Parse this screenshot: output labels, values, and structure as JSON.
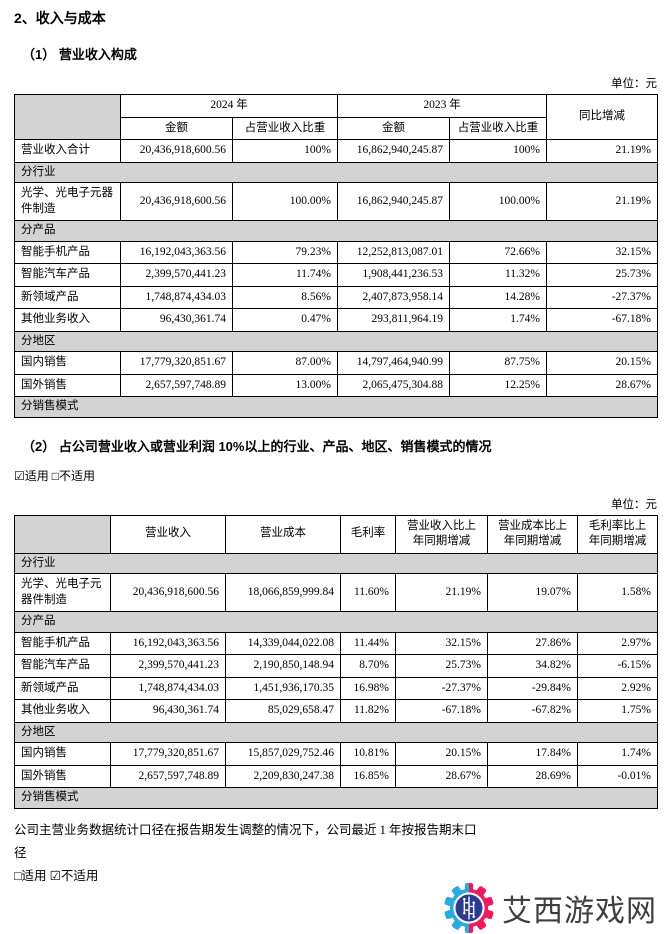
{
  "doc": {
    "heading": "2、收入与成本",
    "section1": {
      "title": "（1） 营业收入构成",
      "unit": "单位：元"
    },
    "section2": {
      "title": "（2） 占公司营业收入或营业利润 10%以上的行业、产品、地区、销售模式的情况",
      "applicability": "☑适用 □不适用",
      "unit": "单位：元"
    },
    "footer": {
      "line1": "公司主营业务数据统计口径在报告期发生调整的情况下，公司最近 1 年按报告期末口径",
      "line2": "□适用 ☑不适用"
    }
  },
  "table1": {
    "headers": {
      "y2024": "2024 年",
      "y2023": "2023 年",
      "yoy": "同比增减",
      "amount": "金额",
      "share": "占营业收入比重"
    },
    "rows": [
      {
        "type": "data",
        "label": "营业收入合计",
        "cells": [
          "20,436,918,600.56",
          "100%",
          "16,862,940,245.87",
          "100%",
          "21.19%"
        ]
      },
      {
        "type": "section",
        "label": "分行业"
      },
      {
        "type": "data",
        "label": "光学、光电子元器件制造",
        "cells": [
          "20,436,918,600.56",
          "100.00%",
          "16,862,940,245.87",
          "100.00%",
          "21.19%"
        ]
      },
      {
        "type": "section",
        "label": "分产品"
      },
      {
        "type": "data",
        "label": "智能手机产品",
        "cells": [
          "16,192,043,363.56",
          "79.23%",
          "12,252,813,087.01",
          "72.66%",
          "32.15%"
        ]
      },
      {
        "type": "data",
        "label": "智能汽车产品",
        "cells": [
          "2,399,570,441.23",
          "11.74%",
          "1,908,441,236.53",
          "11.32%",
          "25.73%"
        ]
      },
      {
        "type": "data",
        "label": "新领域产品",
        "cells": [
          "1,748,874,434.03",
          "8.56%",
          "2,407,873,958.14",
          "14.28%",
          "-27.37%"
        ]
      },
      {
        "type": "data",
        "label": "其他业务收入",
        "cells": [
          "96,430,361.74",
          "0.47%",
          "293,811,964.19",
          "1.74%",
          "-67.18%"
        ]
      },
      {
        "type": "section",
        "label": "分地区"
      },
      {
        "type": "data",
        "label": "国内销售",
        "cells": [
          "17,779,320,851.67",
          "87.00%",
          "14,797,464,940.99",
          "87.75%",
          "20.15%"
        ]
      },
      {
        "type": "data",
        "label": "国外销售",
        "cells": [
          "2,657,597,748.89",
          "13.00%",
          "2,065,475,304.88",
          "12.25%",
          "28.67%"
        ]
      },
      {
        "type": "section",
        "label": "分销售模式"
      }
    ]
  },
  "table2": {
    "headers": [
      "营业收入",
      "营业成本",
      "毛利率",
      "营业收入比上年同期增减",
      "营业成本比上年同期增减",
      "毛利率比上年同期增减"
    ],
    "rows": [
      {
        "type": "section",
        "label": "分行业"
      },
      {
        "type": "data",
        "label": "光学、光电子元器件制造",
        "cells": [
          "20,436,918,600.56",
          "18,066,859,999.84",
          "11.60%",
          "21.19%",
          "19.07%",
          "1.58%"
        ]
      },
      {
        "type": "section",
        "label": "分产品"
      },
      {
        "type": "data",
        "label": "智能手机产品",
        "cells": [
          "16,192,043,363.56",
          "14,339,044,022.08",
          "11.44%",
          "32.15%",
          "27.86%",
          "2.97%"
        ]
      },
      {
        "type": "data",
        "label": "智能汽车产品",
        "cells": [
          "2,399,570,441.23",
          "2,190,850,148.94",
          "8.70%",
          "25.73%",
          "34.82%",
          "-6.15%"
        ]
      },
      {
        "type": "data",
        "label": "新领域产品",
        "cells": [
          "1,748,874,434.03",
          "1,451,936,170.35",
          "16.98%",
          "-27.37%",
          "-29.84%",
          "2.92%"
        ]
      },
      {
        "type": "data",
        "label": "其他业务收入",
        "cells": [
          "96,430,361.74",
          "85,029,658.47",
          "11.82%",
          "-67.18%",
          "-67.82%",
          "1.75%"
        ]
      },
      {
        "type": "section",
        "label": "分地区"
      },
      {
        "type": "data",
        "label": "国内销售",
        "cells": [
          "17,779,320,851.67",
          "15,857,029,752.46",
          "10.81%",
          "20.15%",
          "17.84%",
          "1.74%"
        ]
      },
      {
        "type": "data",
        "label": "国外销售",
        "cells": [
          "2,657,597,748.89",
          "2,209,830,247.38",
          "16.85%",
          "28.67%",
          "28.69%",
          "-0.01%"
        ]
      },
      {
        "type": "section",
        "label": "分销售模式"
      }
    ]
  },
  "watermark": {
    "text": "艾西游戏网",
    "colors": {
      "gear_blue": "#2BA9E0",
      "gear_pink": "#EC1A5E",
      "core_blue": "#2D3A92",
      "text": "#3F3F3F"
    }
  }
}
